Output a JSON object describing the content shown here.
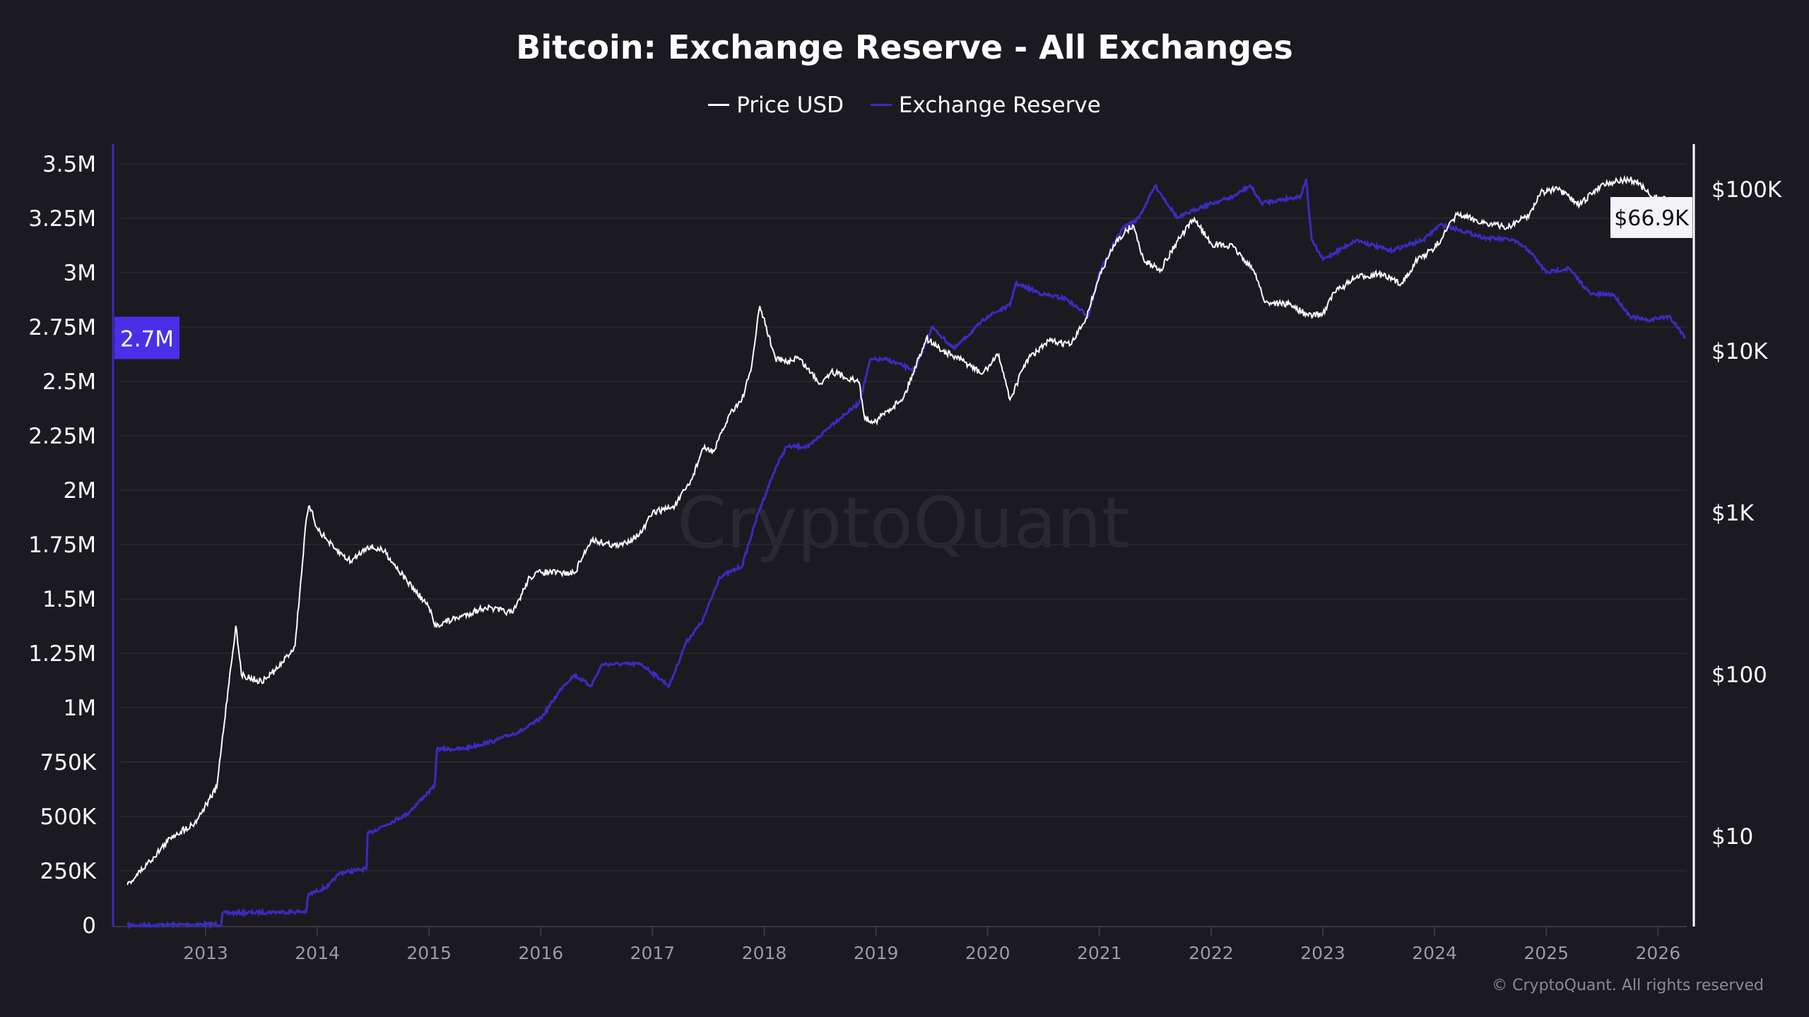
{
  "chart_data": {
    "type": "line",
    "title": "Bitcoin: Exchange Reserve - All Exchanges",
    "legend": {
      "placement": "top-center",
      "entries": [
        "Price USD",
        "Exchange Reserve"
      ]
    },
    "colors": {
      "price": "#ffffff",
      "reserve": "#3b2bbf",
      "marker": "#4a2fe8",
      "background": "#1b1a20"
    },
    "left_axis": {
      "label": "Exchange Reserve",
      "ylim": [
        0,
        3500000
      ],
      "ticks": [
        "0",
        "250K",
        "500K",
        "750K",
        "1M",
        "1.25M",
        "1.5M",
        "1.75M",
        "2M",
        "2.25M",
        "2.5M",
        "2.75M",
        "3M",
        "3.25M",
        "3.5M"
      ],
      "current_label": "2.7M"
    },
    "right_axis": {
      "label": "Price USD",
      "scale": "log",
      "ylim": [
        3,
        180000
      ],
      "ticks": [
        {
          "v": 10,
          "t": "$10"
        },
        {
          "v": 100,
          "t": "$100"
        },
        {
          "v": 1000,
          "t": "$1K"
        },
        {
          "v": 10000,
          "t": "$10K"
        },
        {
          "v": 100000,
          "t": "$100K"
        }
      ],
      "current_label": "$66.9K"
    },
    "x_axis": {
      "xlim": [
        2012.2,
        2026.4
      ],
      "ticks": [
        "2013",
        "2014",
        "2015",
        "2016",
        "2017",
        "2018",
        "2019",
        "2020",
        "2021",
        "2022",
        "2023",
        "2024",
        "2025",
        "2026"
      ]
    },
    "grid": true,
    "watermark": "CryptoQuant",
    "series": [
      {
        "name": "Price USD",
        "axis": "right",
        "points": [
          [
            2012.3,
            5
          ],
          [
            2012.5,
            7
          ],
          [
            2012.7,
            10
          ],
          [
            2012.9,
            12
          ],
          [
            2013.1,
            20
          ],
          [
            2013.2,
            80
          ],
          [
            2013.27,
            200
          ],
          [
            2013.32,
            100
          ],
          [
            2013.5,
            90
          ],
          [
            2013.65,
            110
          ],
          [
            2013.8,
            150
          ],
          [
            2013.9,
            900
          ],
          [
            2013.93,
            1100
          ],
          [
            2014.0,
            800
          ],
          [
            2014.15,
            600
          ],
          [
            2014.3,
            500
          ],
          [
            2014.45,
            620
          ],
          [
            2014.6,
            580
          ],
          [
            2014.8,
            380
          ],
          [
            2015.0,
            260
          ],
          [
            2015.05,
            200
          ],
          [
            2015.3,
            230
          ],
          [
            2015.5,
            260
          ],
          [
            2015.75,
            240
          ],
          [
            2015.9,
            400
          ],
          [
            2016.0,
            430
          ],
          [
            2016.3,
            420
          ],
          [
            2016.45,
            680
          ],
          [
            2016.7,
            620
          ],
          [
            2016.9,
            750
          ],
          [
            2017.0,
            1000
          ],
          [
            2017.2,
            1100
          ],
          [
            2017.35,
            1600
          ],
          [
            2017.45,
            2500
          ],
          [
            2017.55,
            2400
          ],
          [
            2017.7,
            4200
          ],
          [
            2017.8,
            5000
          ],
          [
            2017.88,
            7500
          ],
          [
            2017.96,
            19000
          ],
          [
            2018.1,
            9000
          ],
          [
            2018.2,
            8500
          ],
          [
            2018.3,
            9200
          ],
          [
            2018.5,
            6300
          ],
          [
            2018.6,
            7500
          ],
          [
            2018.85,
            6400
          ],
          [
            2018.9,
            3800
          ],
          [
            2019.0,
            3700
          ],
          [
            2019.25,
            5200
          ],
          [
            2019.45,
            12000
          ],
          [
            2019.6,
            10000
          ],
          [
            2019.8,
            8500
          ],
          [
            2019.95,
            7200
          ],
          [
            2020.1,
            9500
          ],
          [
            2020.2,
            5000
          ],
          [
            2020.35,
            8800
          ],
          [
            2020.55,
            11500
          ],
          [
            2020.75,
            11000
          ],
          [
            2020.88,
            16000
          ],
          [
            2021.0,
            29000
          ],
          [
            2021.15,
            48000
          ],
          [
            2021.3,
            60000
          ],
          [
            2021.4,
            36000
          ],
          [
            2021.55,
            32000
          ],
          [
            2021.7,
            48000
          ],
          [
            2021.85,
            66000
          ],
          [
            2022.0,
            46000
          ],
          [
            2022.2,
            44000
          ],
          [
            2022.4,
            30000
          ],
          [
            2022.48,
            20000
          ],
          [
            2022.7,
            19500
          ],
          [
            2022.87,
            16500
          ],
          [
            2023.0,
            17000
          ],
          [
            2023.1,
            23000
          ],
          [
            2023.3,
            28500
          ],
          [
            2023.5,
            30000
          ],
          [
            2023.7,
            26000
          ],
          [
            2023.85,
            37000
          ],
          [
            2024.0,
            43000
          ],
          [
            2024.2,
            70000
          ],
          [
            2024.45,
            62000
          ],
          [
            2024.65,
            58000
          ],
          [
            2024.85,
            70000
          ],
          [
            2024.95,
            96000
          ],
          [
            2025.1,
            100000
          ],
          [
            2025.3,
            80000
          ],
          [
            2025.5,
            108000
          ],
          [
            2025.75,
            115000
          ],
          [
            2025.85,
            105000
          ],
          [
            2025.95,
            88000
          ],
          [
            2026.05,
            90000
          ],
          [
            2026.12,
            68000
          ],
          [
            2026.25,
            66900
          ]
        ]
      },
      {
        "name": "Exchange Reserve",
        "axis": "left",
        "points": [
          [
            2012.3,
            0
          ],
          [
            2013.14,
            4000
          ],
          [
            2013.15,
            55000
          ],
          [
            2013.6,
            60000
          ],
          [
            2013.9,
            62000
          ],
          [
            2013.92,
            140000
          ],
          [
            2014.1,
            180000
          ],
          [
            2014.2,
            240000
          ],
          [
            2014.44,
            260000
          ],
          [
            2014.45,
            420000
          ],
          [
            2014.8,
            510000
          ],
          [
            2015.05,
            640000
          ],
          [
            2015.07,
            810000
          ],
          [
            2015.3,
            810000
          ],
          [
            2015.6,
            850000
          ],
          [
            2015.85,
            900000
          ],
          [
            2016.0,
            950000
          ],
          [
            2016.2,
            1100000
          ],
          [
            2016.3,
            1150000
          ],
          [
            2016.45,
            1100000
          ],
          [
            2016.55,
            1200000
          ],
          [
            2016.9,
            1200000
          ],
          [
            2017.15,
            1100000
          ],
          [
            2017.3,
            1300000
          ],
          [
            2017.45,
            1400000
          ],
          [
            2017.6,
            1600000
          ],
          [
            2017.8,
            1650000
          ],
          [
            2017.95,
            1900000
          ],
          [
            2018.1,
            2100000
          ],
          [
            2018.2,
            2200000
          ],
          [
            2018.4,
            2200000
          ],
          [
            2018.6,
            2300000
          ],
          [
            2018.85,
            2400000
          ],
          [
            2018.95,
            2600000
          ],
          [
            2019.1,
            2600000
          ],
          [
            2019.35,
            2550000
          ],
          [
            2019.5,
            2750000
          ],
          [
            2019.7,
            2650000
          ],
          [
            2020.0,
            2800000
          ],
          [
            2020.2,
            2850000
          ],
          [
            2020.25,
            2950000
          ],
          [
            2020.5,
            2900000
          ],
          [
            2020.7,
            2880000
          ],
          [
            2020.9,
            2800000
          ],
          [
            2021.0,
            3000000
          ],
          [
            2021.2,
            3200000
          ],
          [
            2021.35,
            3250000
          ],
          [
            2021.5,
            3400000
          ],
          [
            2021.7,
            3250000
          ],
          [
            2021.9,
            3300000
          ],
          [
            2022.2,
            3350000
          ],
          [
            2022.35,
            3400000
          ],
          [
            2022.45,
            3320000
          ],
          [
            2022.8,
            3350000
          ],
          [
            2022.85,
            3430000
          ],
          [
            2022.9,
            3150000
          ],
          [
            2023.0,
            3060000
          ],
          [
            2023.3,
            3150000
          ],
          [
            2023.6,
            3100000
          ],
          [
            2023.9,
            3150000
          ],
          [
            2024.05,
            3220000
          ],
          [
            2024.2,
            3200000
          ],
          [
            2024.45,
            3160000
          ],
          [
            2024.7,
            3150000
          ],
          [
            2024.85,
            3100000
          ],
          [
            2025.0,
            3000000
          ],
          [
            2025.2,
            3020000
          ],
          [
            2025.4,
            2900000
          ],
          [
            2025.6,
            2900000
          ],
          [
            2025.75,
            2800000
          ],
          [
            2025.9,
            2780000
          ],
          [
            2026.1,
            2800000
          ],
          [
            2026.25,
            2700000
          ]
        ]
      }
    ]
  },
  "footer": {
    "copyright": "© CryptoQuant. All rights reserved"
  }
}
